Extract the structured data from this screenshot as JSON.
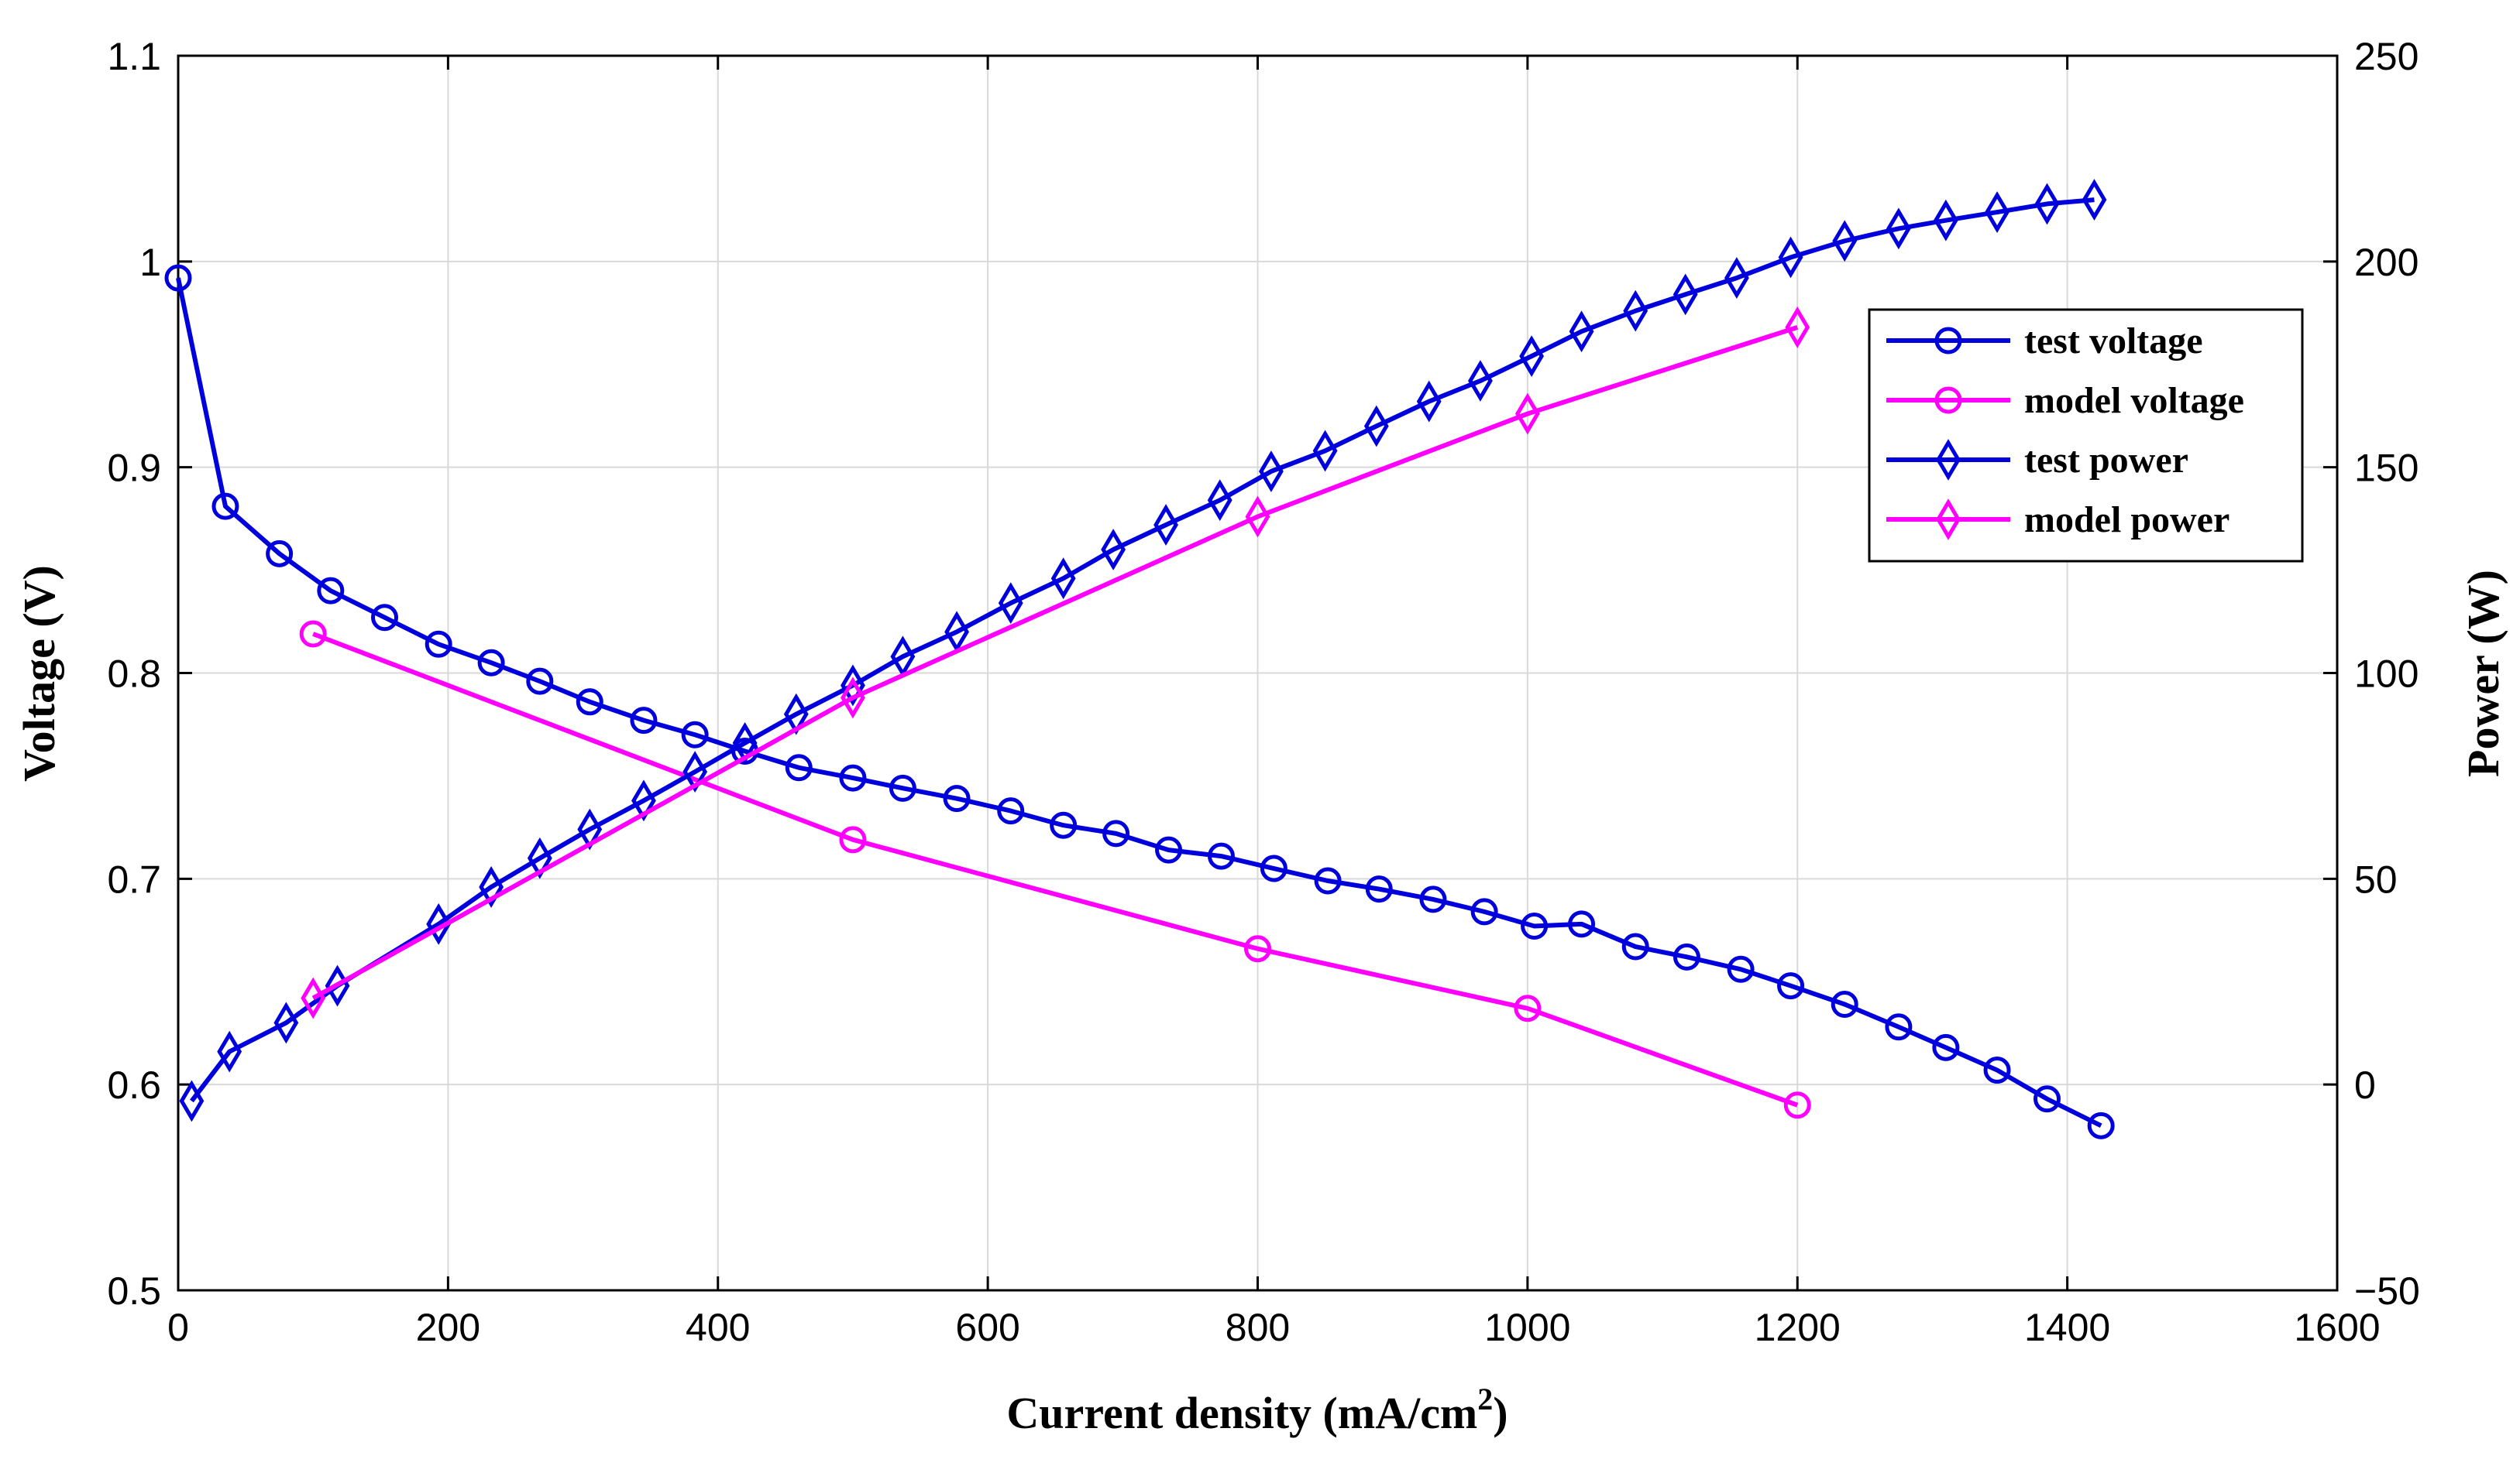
{
  "chart_data": {
    "type": "line",
    "title": "",
    "xlabel": "Current density (mA/cm",
    "xlabel_superscript": "2",
    "xlabel_suffix": ")",
    "ylabel_left": "Voltage (V)",
    "ylabel_right": "Power (W)",
    "xlim": [
      0,
      1600
    ],
    "ylim_left": [
      0.5,
      1.1
    ],
    "ylim_right": [
      -50,
      250
    ],
    "x_ticks": [
      0,
      200,
      400,
      600,
      800,
      1000,
      1200,
      1400,
      1600
    ],
    "x_tick_labels": [
      "0",
      "200",
      "400",
      "600",
      "800",
      "1000",
      "1200",
      "1400",
      "1600"
    ],
    "y_left_ticks": [
      0.5,
      0.6,
      0.7,
      0.8,
      0.9,
      1.0,
      1.1
    ],
    "y_left_tick_labels": [
      "0.5",
      "0.6",
      "0.7",
      "0.8",
      "0.9",
      "1",
      "1.1"
    ],
    "y_right_ticks": [
      -50,
      0,
      50,
      100,
      150,
      200,
      250
    ],
    "y_right_tick_labels": [
      "−50",
      "0",
      "50",
      "100",
      "150",
      "200",
      "250"
    ],
    "grid": true,
    "legend_position": "top-right",
    "series": [
      {
        "name": "test voltage",
        "axis": "left",
        "marker": "circle",
        "color": "#0000dd",
        "x": [
          0,
          35,
          75,
          113,
          153,
          193,
          232,
          268,
          305,
          345,
          383,
          420,
          460,
          500,
          537,
          577,
          617,
          656,
          695,
          734,
          773,
          812,
          852,
          890,
          930,
          968,
          1005,
          1040,
          1080,
          1118,
          1158,
          1195,
          1235,
          1275,
          1310,
          1348,
          1385,
          1425
        ],
        "y": [
          0.992,
          0.881,
          0.858,
          0.84,
          0.827,
          0.814,
          0.805,
          0.796,
          0.786,
          0.777,
          0.77,
          0.762,
          0.754,
          0.749,
          0.744,
          0.739,
          0.733,
          0.726,
          0.722,
          0.714,
          0.711,
          0.705,
          0.699,
          0.695,
          0.69,
          0.684,
          0.677,
          0.678,
          0.667,
          0.662,
          0.656,
          0.648,
          0.639,
          0.628,
          0.618,
          0.607,
          0.593,
          0.58
        ]
      },
      {
        "name": "model voltage",
        "axis": "left",
        "marker": "circle",
        "color": "#ff00ff",
        "x": [
          100,
          500,
          800,
          1000,
          1200
        ],
        "y": [
          0.819,
          0.719,
          0.666,
          0.637,
          0.59
        ]
      },
      {
        "name": "test power",
        "axis": "right",
        "marker": "diamond",
        "color": "#0000dd",
        "x": [
          10,
          38,
          80,
          118,
          193,
          232,
          268,
          305,
          345,
          383,
          420,
          458,
          500,
          537,
          577,
          617,
          656,
          693,
          732,
          772,
          810,
          850,
          888,
          927,
          965,
          1003,
          1040,
          1080,
          1117,
          1155,
          1195,
          1235,
          1275,
          1310,
          1348,
          1385,
          1420
        ],
        "y": [
          -4,
          8,
          15,
          24,
          39,
          48,
          55,
          62,
          69,
          76,
          83,
          90,
          97,
          104,
          110,
          117,
          123,
          130,
          136,
          142,
          149,
          154,
          160,
          166,
          171,
          177,
          183,
          188,
          192,
          196,
          201,
          205,
          208,
          210,
          212,
          214,
          215
        ]
      },
      {
        "name": "model power",
        "axis": "right",
        "marker": "diamond",
        "color": "#ff00ff",
        "x": [
          100,
          500,
          800,
          1000,
          1200
        ],
        "y": [
          21,
          94,
          138,
          163,
          184
        ]
      }
    ]
  }
}
